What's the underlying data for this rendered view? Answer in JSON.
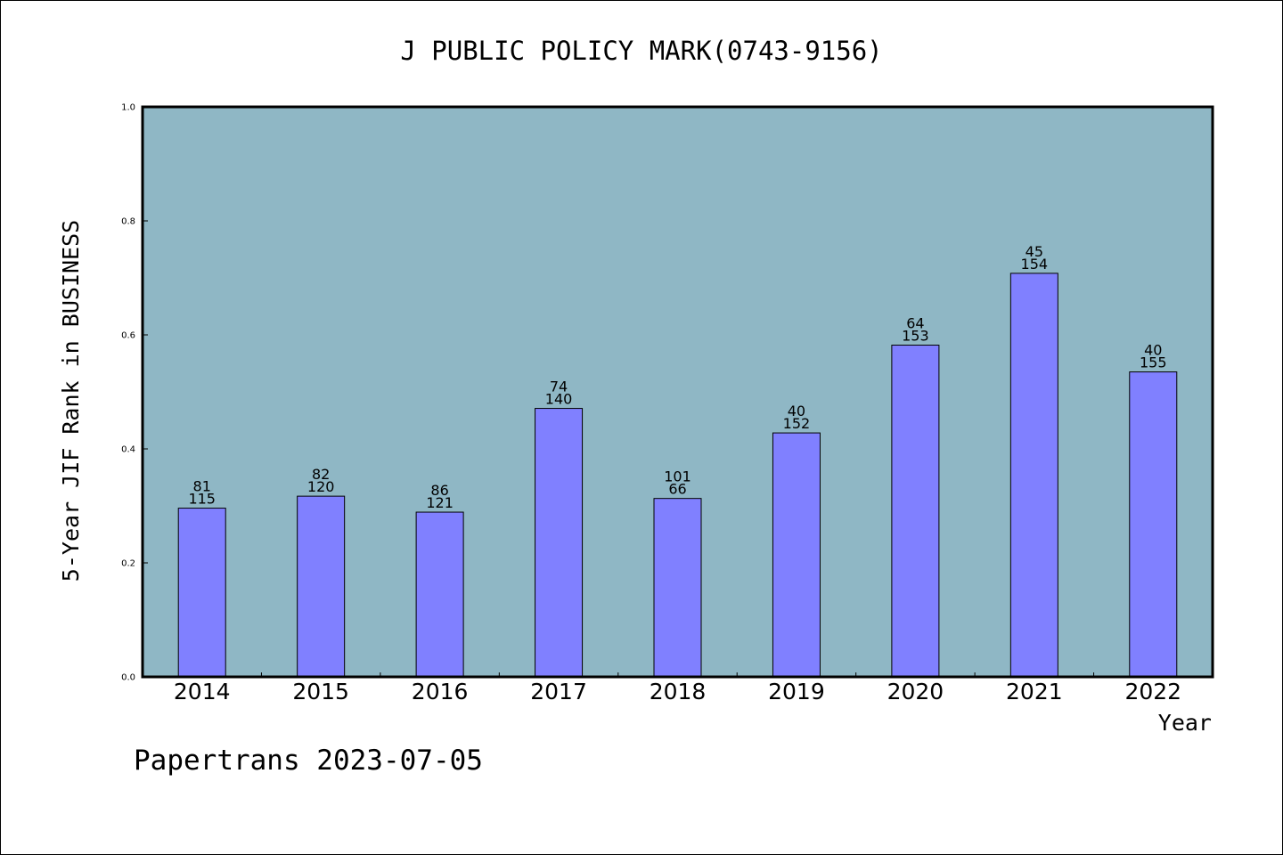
{
  "chart_data": {
    "type": "bar",
    "title": "J PUBLIC POLICY MARK(0743-9156)",
    "xlabel": "Year",
    "ylabel": "5-Year JIF Rank in BUSINESS",
    "categories": [
      "2014",
      "2015",
      "2016",
      "2017",
      "2018",
      "2019",
      "2020",
      "2021",
      "2022"
    ],
    "values": [
      0.296,
      0.317,
      0.289,
      0.471,
      0.313,
      0.428,
      0.582,
      0.708,
      0.535
    ],
    "labels_top": [
      "81",
      "82",
      "86",
      "74",
      "101",
      "40",
      "64",
      "45",
      "40"
    ],
    "labels_bottom": [
      "115",
      "120",
      "121",
      "140",
      "66",
      "152",
      "153",
      "154",
      "155"
    ],
    "ylim": [
      0,
      1.0
    ],
    "yticks": [
      "0.0",
      "0.2",
      "0.4",
      "0.6",
      "0.8",
      "1.0"
    ],
    "grid": false,
    "colors": {
      "plot_bg": "#8fb7c5",
      "bar": "#8080ff",
      "bar_edge": "#000000"
    }
  },
  "footer": "Papertrans 2023-07-05"
}
